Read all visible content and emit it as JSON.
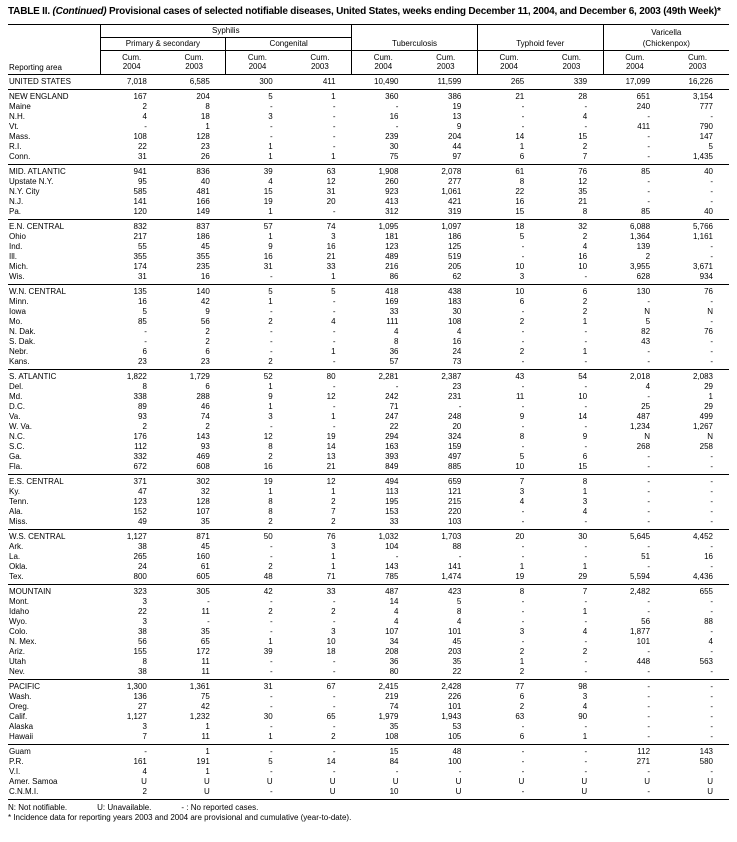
{
  "title": {
    "label": "TABLE II.",
    "continued": "(Continued)",
    "rest": "Provisional cases of selected notifiable diseases, United States, weeks ending December 11, 2004, and December 6, 2003 (49th Week)*"
  },
  "header": {
    "reporting_area": "Reporting area",
    "syphilis": "Syphilis",
    "primary_secondary": "Primary & secondary",
    "congenital": "Congenital",
    "tuberculosis": "Tuberculosis",
    "typhoid": "Typhoid fever",
    "varicella_line1": "Varicella",
    "varicella_line2": "(Chickenpox)",
    "cum": "Cum.",
    "years": [
      "2004",
      "2003"
    ]
  },
  "sections": [
    {
      "rows": [
        {
          "area": "UNITED STATES",
          "values": [
            "7,018",
            "6,585",
            "300",
            "411",
            "10,490",
            "11,599",
            "265",
            "339",
            "17,099",
            "16,226"
          ]
        }
      ]
    },
    {
      "rows": [
        {
          "area": "NEW ENGLAND",
          "values": [
            "167",
            "204",
            "5",
            "1",
            "360",
            "386",
            "21",
            "28",
            "651",
            "3,154"
          ]
        },
        {
          "area": "Maine",
          "values": [
            "2",
            "8",
            "-",
            "-",
            "-",
            "19",
            "-",
            "-",
            "240",
            "777"
          ]
        },
        {
          "area": "N.H.",
          "values": [
            "4",
            "18",
            "3",
            "-",
            "16",
            "13",
            "-",
            "4",
            "-",
            "-"
          ]
        },
        {
          "area": "Vt.",
          "values": [
            "-",
            "1",
            "-",
            "-",
            "-",
            "9",
            "-",
            "-",
            "411",
            "790"
          ]
        },
        {
          "area": "Mass.",
          "values": [
            "108",
            "128",
            "-",
            "-",
            "239",
            "204",
            "14",
            "15",
            "-",
            "147"
          ]
        },
        {
          "area": "R.I.",
          "values": [
            "22",
            "23",
            "1",
            "-",
            "30",
            "44",
            "1",
            "2",
            "-",
            "5"
          ]
        },
        {
          "area": "Conn.",
          "values": [
            "31",
            "26",
            "1",
            "1",
            "75",
            "97",
            "6",
            "7",
            "-",
            "1,435"
          ]
        }
      ]
    },
    {
      "rows": [
        {
          "area": "MID. ATLANTIC",
          "values": [
            "941",
            "836",
            "39",
            "63",
            "1,908",
            "2,078",
            "61",
            "76",
            "85",
            "40"
          ]
        },
        {
          "area": "Upstate N.Y.",
          "values": [
            "95",
            "40",
            "4",
            "12",
            "260",
            "277",
            "8",
            "12",
            "-",
            "-"
          ]
        },
        {
          "area": "N.Y. City",
          "values": [
            "585",
            "481",
            "15",
            "31",
            "923",
            "1,061",
            "22",
            "35",
            "-",
            "-"
          ]
        },
        {
          "area": "N.J.",
          "values": [
            "141",
            "166",
            "19",
            "20",
            "413",
            "421",
            "16",
            "21",
            "-",
            "-"
          ]
        },
        {
          "area": "Pa.",
          "values": [
            "120",
            "149",
            "1",
            "-",
            "312",
            "319",
            "15",
            "8",
            "85",
            "40"
          ]
        }
      ]
    },
    {
      "rows": [
        {
          "area": "E.N. CENTRAL",
          "values": [
            "832",
            "837",
            "57",
            "74",
            "1,095",
            "1,097",
            "18",
            "32",
            "6,088",
            "5,766"
          ]
        },
        {
          "area": "Ohio",
          "values": [
            "217",
            "186",
            "1",
            "3",
            "181",
            "186",
            "5",
            "2",
            "1,364",
            "1,161"
          ]
        },
        {
          "area": "Ind.",
          "values": [
            "55",
            "45",
            "9",
            "16",
            "123",
            "125",
            "-",
            "4",
            "139",
            "-"
          ]
        },
        {
          "area": "Ill.",
          "values": [
            "355",
            "355",
            "16",
            "21",
            "489",
            "519",
            "-",
            "16",
            "2",
            "-"
          ]
        },
        {
          "area": "Mich.",
          "values": [
            "174",
            "235",
            "31",
            "33",
            "216",
            "205",
            "10",
            "10",
            "3,955",
            "3,671"
          ]
        },
        {
          "area": "Wis.",
          "values": [
            "31",
            "16",
            "-",
            "1",
            "86",
            "62",
            "3",
            "-",
            "628",
            "934"
          ]
        }
      ]
    },
    {
      "rows": [
        {
          "area": "W.N. CENTRAL",
          "values": [
            "135",
            "140",
            "5",
            "5",
            "418",
            "438",
            "10",
            "6",
            "130",
            "76"
          ]
        },
        {
          "area": "Minn.",
          "values": [
            "16",
            "42",
            "1",
            "-",
            "169",
            "183",
            "6",
            "2",
            "-",
            "-"
          ]
        },
        {
          "area": "Iowa",
          "values": [
            "5",
            "9",
            "-",
            "-",
            "33",
            "30",
            "-",
            "2",
            "N",
            "N"
          ]
        },
        {
          "area": "Mo.",
          "values": [
            "85",
            "56",
            "2",
            "4",
            "111",
            "108",
            "2",
            "1",
            "5",
            "-"
          ]
        },
        {
          "area": "N. Dak.",
          "values": [
            "-",
            "2",
            "-",
            "-",
            "4",
            "4",
            "-",
            "-",
            "82",
            "76"
          ]
        },
        {
          "area": "S. Dak.",
          "values": [
            "-",
            "2",
            "-",
            "-",
            "8",
            "16",
            "-",
            "-",
            "43",
            "-"
          ]
        },
        {
          "area": "Nebr.",
          "values": [
            "6",
            "6",
            "-",
            "1",
            "36",
            "24",
            "2",
            "1",
            "-",
            "-"
          ]
        },
        {
          "area": "Kans.",
          "values": [
            "23",
            "23",
            "2",
            "-",
            "57",
            "73",
            "-",
            "-",
            "-",
            "-"
          ]
        }
      ]
    },
    {
      "rows": [
        {
          "area": "S. ATLANTIC",
          "values": [
            "1,822",
            "1,729",
            "52",
            "80",
            "2,281",
            "2,387",
            "43",
            "54",
            "2,018",
            "2,083"
          ]
        },
        {
          "area": "Del.",
          "values": [
            "8",
            "6",
            "1",
            "-",
            "-",
            "23",
            "-",
            "-",
            "4",
            "29"
          ]
        },
        {
          "area": "Md.",
          "values": [
            "338",
            "288",
            "9",
            "12",
            "242",
            "231",
            "11",
            "10",
            "-",
            "1"
          ]
        },
        {
          "area": "D.C.",
          "values": [
            "89",
            "46",
            "1",
            "-",
            "71",
            "-",
            "-",
            "-",
            "25",
            "29"
          ]
        },
        {
          "area": "Va.",
          "values": [
            "93",
            "74",
            "3",
            "1",
            "247",
            "248",
            "9",
            "14",
            "487",
            "499"
          ]
        },
        {
          "area": "W. Va.",
          "values": [
            "2",
            "2",
            "-",
            "-",
            "22",
            "20",
            "-",
            "-",
            "1,234",
            "1,267"
          ]
        },
        {
          "area": "N.C.",
          "values": [
            "176",
            "143",
            "12",
            "19",
            "294",
            "324",
            "8",
            "9",
            "N",
            "N"
          ]
        },
        {
          "area": "S.C.",
          "values": [
            "112",
            "93",
            "8",
            "14",
            "163",
            "159",
            "-",
            "-",
            "268",
            "258"
          ]
        },
        {
          "area": "Ga.",
          "values": [
            "332",
            "469",
            "2",
            "13",
            "393",
            "497",
            "5",
            "6",
            "-",
            "-"
          ]
        },
        {
          "area": "Fla.",
          "values": [
            "672",
            "608",
            "16",
            "21",
            "849",
            "885",
            "10",
            "15",
            "-",
            "-"
          ]
        }
      ]
    },
    {
      "rows": [
        {
          "area": "E.S. CENTRAL",
          "values": [
            "371",
            "302",
            "19",
            "12",
            "494",
            "659",
            "7",
            "8",
            "-",
            "-"
          ]
        },
        {
          "area": "Ky.",
          "values": [
            "47",
            "32",
            "1",
            "1",
            "113",
            "121",
            "3",
            "1",
            "-",
            "-"
          ]
        },
        {
          "area": "Tenn.",
          "values": [
            "123",
            "128",
            "8",
            "2",
            "195",
            "215",
            "4",
            "3",
            "-",
            "-"
          ]
        },
        {
          "area": "Ala.",
          "values": [
            "152",
            "107",
            "8",
            "7",
            "153",
            "220",
            "-",
            "4",
            "-",
            "-"
          ]
        },
        {
          "area": "Miss.",
          "values": [
            "49",
            "35",
            "2",
            "2",
            "33",
            "103",
            "-",
            "-",
            "-",
            "-"
          ]
        }
      ]
    },
    {
      "rows": [
        {
          "area": "W.S. CENTRAL",
          "values": [
            "1,127",
            "871",
            "50",
            "76",
            "1,032",
            "1,703",
            "20",
            "30",
            "5,645",
            "4,452"
          ]
        },
        {
          "area": "Ark.",
          "values": [
            "38",
            "45",
            "-",
            "3",
            "104",
            "88",
            "-",
            "-",
            "-",
            "-"
          ]
        },
        {
          "area": "La.",
          "values": [
            "265",
            "160",
            "-",
            "1",
            "-",
            "-",
            "-",
            "-",
            "51",
            "16"
          ]
        },
        {
          "area": "Okla.",
          "values": [
            "24",
            "61",
            "2",
            "1",
            "143",
            "141",
            "1",
            "1",
            "-",
            "-"
          ]
        },
        {
          "area": "Tex.",
          "values": [
            "800",
            "605",
            "48",
            "71",
            "785",
            "1,474",
            "19",
            "29",
            "5,594",
            "4,436"
          ]
        }
      ]
    },
    {
      "rows": [
        {
          "area": "MOUNTAIN",
          "values": [
            "323",
            "305",
            "42",
            "33",
            "487",
            "423",
            "8",
            "7",
            "2,482",
            "655"
          ]
        },
        {
          "area": "Mont.",
          "values": [
            "3",
            "-",
            "-",
            "-",
            "14",
            "5",
            "-",
            "-",
            "-",
            "-"
          ]
        },
        {
          "area": "Idaho",
          "values": [
            "22",
            "11",
            "2",
            "2",
            "4",
            "8",
            "-",
            "1",
            "-",
            "-"
          ]
        },
        {
          "area": "Wyo.",
          "values": [
            "3",
            "-",
            "-",
            "-",
            "4",
            "4",
            "-",
            "-",
            "56",
            "88"
          ]
        },
        {
          "area": "Colo.",
          "values": [
            "38",
            "35",
            "-",
            "3",
            "107",
            "101",
            "3",
            "4",
            "1,877",
            "-"
          ]
        },
        {
          "area": "N. Mex.",
          "values": [
            "56",
            "65",
            "1",
            "10",
            "34",
            "45",
            "-",
            "-",
            "101",
            "4"
          ]
        },
        {
          "area": "Ariz.",
          "values": [
            "155",
            "172",
            "39",
            "18",
            "208",
            "203",
            "2",
            "2",
            "-",
            "-"
          ]
        },
        {
          "area": "Utah",
          "values": [
            "8",
            "11",
            "-",
            "-",
            "36",
            "35",
            "1",
            "-",
            "448",
            "563"
          ]
        },
        {
          "area": "Nev.",
          "values": [
            "38",
            "11",
            "-",
            "-",
            "80",
            "22",
            "2",
            "-",
            "-",
            "-"
          ]
        }
      ]
    },
    {
      "rows": [
        {
          "area": "PACIFIC",
          "values": [
            "1,300",
            "1,361",
            "31",
            "67",
            "2,415",
            "2,428",
            "77",
            "98",
            "-",
            "-"
          ]
        },
        {
          "area": "Wash.",
          "values": [
            "136",
            "75",
            "-",
            "-",
            "219",
            "226",
            "6",
            "3",
            "-",
            "-"
          ]
        },
        {
          "area": "Oreg.",
          "values": [
            "27",
            "42",
            "-",
            "-",
            "74",
            "101",
            "2",
            "4",
            "-",
            "-"
          ]
        },
        {
          "area": "Calif.",
          "values": [
            "1,127",
            "1,232",
            "30",
            "65",
            "1,979",
            "1,943",
            "63",
            "90",
            "-",
            "-"
          ]
        },
        {
          "area": "Alaska",
          "values": [
            "3",
            "1",
            "-",
            "-",
            "35",
            "53",
            "-",
            "-",
            "-",
            "-"
          ]
        },
        {
          "area": "Hawaii",
          "values": [
            "7",
            "11",
            "1",
            "2",
            "108",
            "105",
            "6",
            "1",
            "-",
            "-"
          ]
        }
      ]
    },
    {
      "rows": [
        {
          "area": "Guam",
          "values": [
            "-",
            "1",
            "-",
            "-",
            "15",
            "48",
            "-",
            "-",
            "112",
            "143"
          ]
        },
        {
          "area": "P.R.",
          "values": [
            "161",
            "191",
            "5",
            "14",
            "84",
            "100",
            "-",
            "-",
            "271",
            "580"
          ]
        },
        {
          "area": "V.I.",
          "values": [
            "4",
            "1",
            "-",
            "-",
            "-",
            "-",
            "-",
            "-",
            "-",
            "-"
          ]
        },
        {
          "area": "Amer. Samoa",
          "values": [
            "U",
            "U",
            "U",
            "U",
            "U",
            "U",
            "U",
            "U",
            "U",
            "U"
          ]
        },
        {
          "area": "C.N.M.I.",
          "values": [
            "2",
            "U",
            "-",
            "U",
            "10",
            "U",
            "-",
            "U",
            "-",
            "U"
          ]
        }
      ]
    }
  ],
  "footnotes": {
    "abbr_n": "N: Not notifiable.",
    "abbr_u": "U: Unavailable.",
    "abbr_dash": "- : No reported cases.",
    "note": "* Incidence data for reporting years 2003 and 2004 are provisional and cumulative (year-to-date)."
  }
}
